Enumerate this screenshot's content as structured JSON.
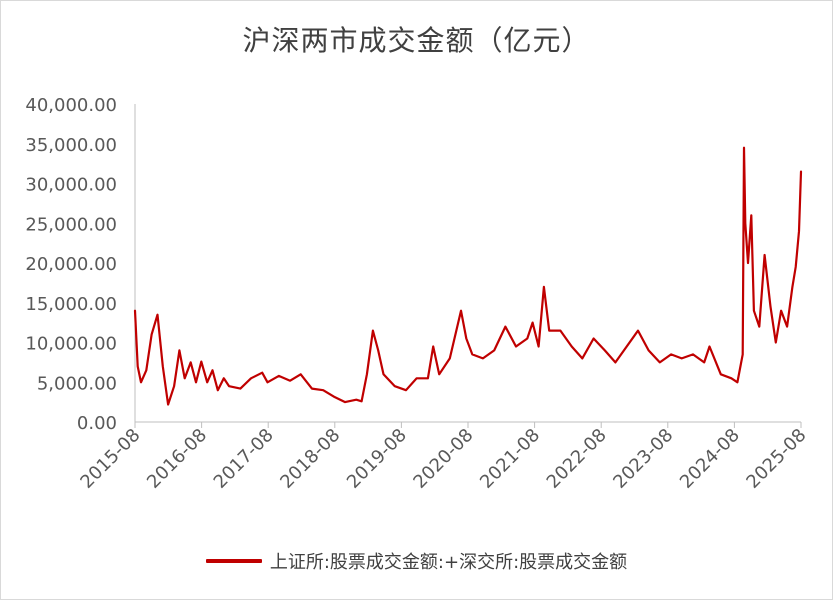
{
  "chart_data": {
    "type": "line",
    "title": "沪深两市成交金额（亿元）",
    "xlabel": "",
    "ylabel": "",
    "ylim": [
      0,
      40000
    ],
    "y_ticks": [
      "0.00",
      "5,000.00",
      "10,000.00",
      "15,000.00",
      "20,000.00",
      "25,000.00",
      "30,000.00",
      "35,000.00",
      "40,000.00"
    ],
    "x_ticks": [
      "2015-08",
      "2016-08",
      "2017-08",
      "2018-08",
      "2019-08",
      "2020-08",
      "2021-08",
      "2022-08",
      "2023-08",
      "2024-08",
      "2025-08"
    ],
    "grid": false,
    "legend_position": "bottom",
    "colors": {
      "series": "#c00000",
      "axis": "#bfbfbf",
      "text": "#595959"
    },
    "series": [
      {
        "name": "上证所:股票成交金额:+深交所:股票成交金额",
        "x": [
          2015.58,
          2015.62,
          2015.67,
          2015.75,
          2015.83,
          2015.92,
          2016.0,
          2016.08,
          2016.17,
          2016.25,
          2016.33,
          2016.42,
          2016.5,
          2016.58,
          2016.67,
          2016.75,
          2016.83,
          2016.92,
          2017.0,
          2017.17,
          2017.33,
          2017.5,
          2017.58,
          2017.75,
          2017.92,
          2018.08,
          2018.25,
          2018.42,
          2018.58,
          2018.75,
          2018.92,
          2019.0,
          2019.08,
          2019.17,
          2019.25,
          2019.33,
          2019.5,
          2019.67,
          2019.83,
          2020.0,
          2020.08,
          2020.17,
          2020.33,
          2020.5,
          2020.58,
          2020.67,
          2020.83,
          2021.0,
          2021.17,
          2021.33,
          2021.5,
          2021.58,
          2021.67,
          2021.75,
          2021.83,
          2022.0,
          2022.17,
          2022.33,
          2022.5,
          2022.67,
          2022.83,
          2023.0,
          2023.17,
          2023.33,
          2023.5,
          2023.67,
          2023.83,
          2024.0,
          2024.17,
          2024.25,
          2024.42,
          2024.58,
          2024.67,
          2024.75,
          2024.77,
          2024.79,
          2024.83,
          2024.88,
          2024.92,
          2025.0,
          2025.08,
          2025.17,
          2025.25,
          2025.33,
          2025.42,
          2025.5,
          2025.55,
          2025.6,
          2025.63
        ],
        "values": [
          14000,
          7000,
          5000,
          6500,
          11000,
          13500,
          7000,
          2200,
          4500,
          9000,
          5500,
          7500,
          5000,
          7600,
          5000,
          6500,
          4000,
          5500,
          4500,
          4200,
          5500,
          6200,
          5000,
          5800,
          5200,
          6000,
          4200,
          4000,
          3200,
          2500,
          2800,
          2600,
          6000,
          11500,
          9000,
          6000,
          4500,
          4000,
          5500,
          5500,
          9500,
          6000,
          8000,
          14000,
          10500,
          8500,
          8000,
          9000,
          12000,
          9500,
          10500,
          12500,
          9500,
          17000,
          11500,
          11500,
          9500,
          8000,
          10500,
          9000,
          7500,
          9500,
          11500,
          9000,
          7500,
          8500,
          8000,
          8500,
          7500,
          9500,
          6000,
          5500,
          5000,
          8500,
          34500,
          25000,
          20000,
          26000,
          14000,
          12000,
          21000,
          14500,
          10000,
          14000,
          12000,
          17000,
          19500,
          24000,
          31500
        ]
      }
    ]
  }
}
